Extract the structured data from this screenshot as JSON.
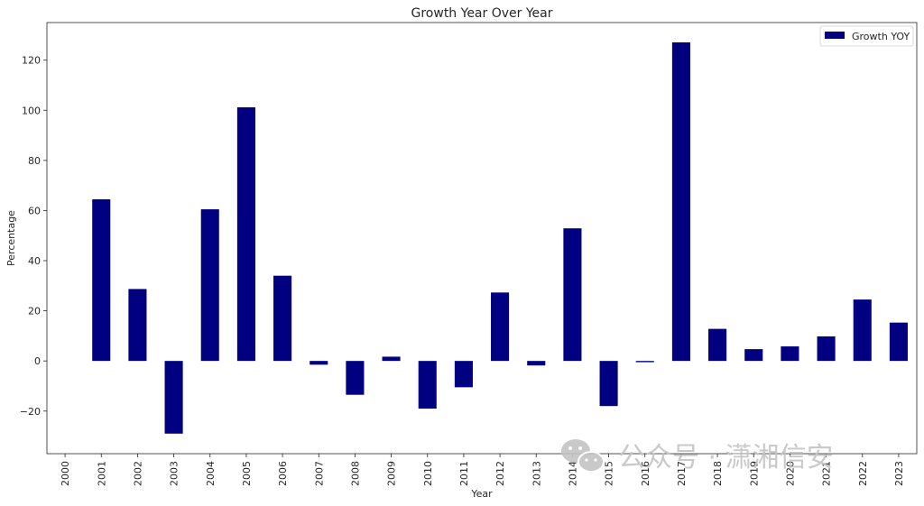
{
  "chart_data": {
    "type": "bar",
    "title": "Growth Year Over Year",
    "xlabel": "Year",
    "ylabel": "Percentage",
    "categories": [
      "2000",
      "2001",
      "2002",
      "2003",
      "2004",
      "2005",
      "2006",
      "2007",
      "2008",
      "2009",
      "2010",
      "2011",
      "2012",
      "2013",
      "2014",
      "2015",
      "2016",
      "2017",
      "2018",
      "2019",
      "2020",
      "2021",
      "2022",
      "2023"
    ],
    "series": [
      {
        "name": "Growth YOY",
        "color": "#000080",
        "values": [
          null,
          64.5,
          28.7,
          -29.0,
          60.5,
          101.2,
          34.0,
          -1.5,
          -13.5,
          1.7,
          -19.0,
          -10.5,
          27.3,
          -1.8,
          52.9,
          -18.0,
          -0.5,
          127.1,
          12.8,
          4.7,
          5.8,
          9.8,
          24.5,
          15.3
        ]
      }
    ],
    "ylim": [
      -37,
      135
    ],
    "yticks": [
      -20,
      0,
      20,
      40,
      60,
      80,
      100,
      120
    ],
    "ytick_labels": [
      "−20",
      "0",
      "20",
      "40",
      "60",
      "80",
      "100",
      "120"
    ],
    "grid": false,
    "legend": "top-right"
  },
  "watermark": {
    "icon": "wechat-icon",
    "text": "公众号 · 潇湘信安"
  }
}
